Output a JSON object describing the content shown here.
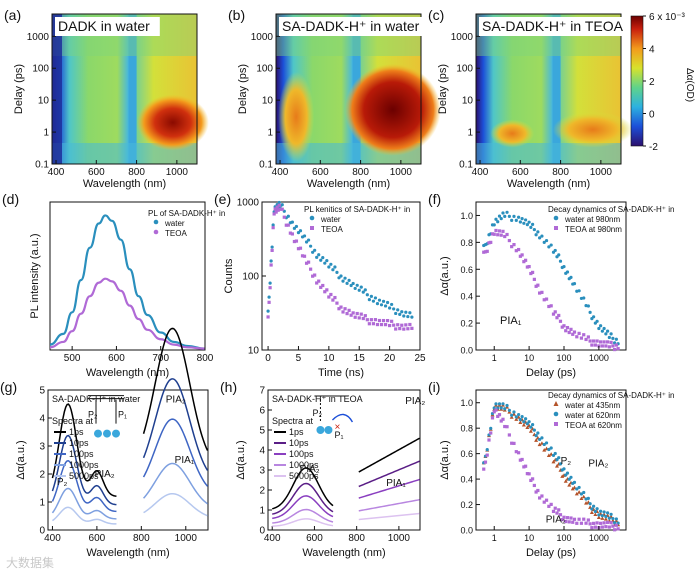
{
  "panels": {
    "a": {
      "letter": "(a)",
      "title": "DADK in water",
      "xlabel": "Wavelength (nm)",
      "ylabel": "Delay (ps)"
    },
    "b": {
      "letter": "(b)",
      "title": "SA-DADK-H⁺ in water",
      "xlabel": "Wavelength (nm)",
      "ylabel": "Delay (ps)"
    },
    "c": {
      "letter": "(c)",
      "title": "SA-DADK-H⁺ in TEOA",
      "xlabel": "Wavelength (nm)",
      "ylabel": "Delay (ps)"
    },
    "d": {
      "letter": "(d)",
      "legend_title": "PL of SA-DADK-H⁺ in",
      "xlabel": "Wavelength (nm)",
      "ylabel": "PL intensity (a.u.)"
    },
    "e": {
      "letter": "(e)",
      "legend_title": "PL kenitics of SA-DADK-H⁺ in",
      "xlabel": "Time (ns)",
      "ylabel": "Counts"
    },
    "f": {
      "letter": "(f)",
      "legend_title": "Decay dynamics of SA-DADK-H⁺ in",
      "xlabel": "Delay (ps)",
      "ylabel": "Δα(a.u.)",
      "annot": "PIA₁"
    },
    "g": {
      "letter": "(g)",
      "title": "SA-DADK-H⁺ in water",
      "legend_title": "Spectra at",
      "xlabel": "Wavelength (nm)",
      "ylabel": "Δα(a.u.)",
      "annots": [
        "PIA₂",
        "PIA₁",
        "P₂",
        "P₁",
        "P₂",
        "PIA₂"
      ]
    },
    "h": {
      "letter": "(h)",
      "title": "SA-DADK-H⁺ in TEOA",
      "legend_title": "Spectra at",
      "xlabel": "Wavelength (nm)",
      "ylabel": "Δα(a.u.)",
      "annots": [
        "PIA₂",
        "PIA₂",
        "PIA₁",
        "P₂",
        "P₁"
      ]
    },
    "i": {
      "letter": "(i)",
      "legend_title": "Decay dynamics of SA-DADK-H⁺ in",
      "xlabel": "Delay (ps)",
      "ylabel": "Δα(a.u.)",
      "annots": [
        "P₂",
        "PIA₂",
        "PIA₂"
      ]
    }
  },
  "colorbar": {
    "label": "Δα(OD)",
    "ticks": [
      "6 x 10⁻³",
      "4",
      "2",
      "0",
      "-2"
    ]
  },
  "watermark": "大数据集",
  "chart_data": [
    {
      "id": "a",
      "type": "heatmap",
      "title": "DADK in water",
      "xlabel": "Wavelength (nm)",
      "ylabel": "Delay (ps)",
      "xticks": [
        "400",
        "600",
        "800",
        "1000"
      ],
      "yticks": [
        "0.1",
        "1",
        "10",
        "100",
        "1000"
      ],
      "xlim": [
        380,
        1100
      ],
      "ylim": [
        0.1,
        5000
      ],
      "ylog": true,
      "features": [
        {
          "region": "380-420 nm",
          "value": -2
        },
        {
          "region": "850-1100 nm, 0.5-10 ps",
          "value": 4.5
        }
      ]
    },
    {
      "id": "b",
      "type": "heatmap",
      "title": "SA-DADK-H⁺ in water",
      "xlabel": "Wavelength (nm)",
      "ylabel": "Delay (ps)",
      "xticks": [
        "400",
        "600",
        "800",
        "1000"
      ],
      "yticks": [
        "0.1",
        "1",
        "10",
        "100",
        "1000"
      ],
      "xlim": [
        380,
        1100
      ],
      "ylim": [
        0.1,
        5000
      ],
      "ylog": true
    },
    {
      "id": "c",
      "type": "heatmap",
      "title": "SA-DADK-H⁺ in TEOA",
      "xlabel": "Wavelength (nm)",
      "ylabel": "Delay (ps)",
      "xticks": [
        "400",
        "600",
        "800",
        "1000"
      ],
      "yticks": [
        "0.1",
        "1",
        "10",
        "100",
        "1000"
      ],
      "xlim": [
        380,
        1100
      ],
      "ylim": [
        0.1,
        5000
      ],
      "ylog": true
    },
    {
      "id": "d",
      "type": "line",
      "xlabel": "Wavelength (nm)",
      "ylabel": "PL intensity (a.u.)",
      "xlim": [
        450,
        800
      ],
      "xticks": [
        "500",
        "600",
        "700",
        "800"
      ],
      "x": [
        450,
        480,
        500,
        520,
        540,
        560,
        575,
        590,
        610,
        630,
        650,
        670,
        700,
        730,
        760,
        800
      ],
      "series": [
        {
          "name": "water",
          "color": "#2a8fbd",
          "values": [
            0.04,
            0.12,
            0.28,
            0.52,
            0.76,
            0.94,
            1.0,
            0.96,
            0.82,
            0.6,
            0.4,
            0.26,
            0.13,
            0.06,
            0.03,
            0.01
          ]
        },
        {
          "name": "TEOA",
          "color": "#b06ad6",
          "values": [
            0.02,
            0.06,
            0.14,
            0.27,
            0.4,
            0.5,
            0.53,
            0.51,
            0.44,
            0.33,
            0.23,
            0.15,
            0.08,
            0.04,
            0.02,
            0.01
          ]
        }
      ]
    },
    {
      "id": "e",
      "type": "scatter",
      "xlabel": "Time (ns)",
      "ylabel": "Counts",
      "xlim": [
        -1,
        25
      ],
      "ylim": [
        10,
        1000
      ],
      "ylog": true,
      "xticks": [
        "0",
        "5",
        "10",
        "15",
        "20",
        "25"
      ],
      "yticks": [
        "10",
        "100",
        "1000"
      ],
      "series": [
        {
          "name": "water",
          "color": "#2a8fbd",
          "x": [
            0,
            1,
            2,
            4,
            6,
            8,
            10,
            12,
            14,
            16,
            18,
            20,
            22,
            24
          ],
          "values": [
            30,
            800,
            900,
            520,
            320,
            200,
            140,
            100,
            75,
            58,
            46,
            38,
            32,
            28
          ]
        },
        {
          "name": "TEOA",
          "color": "#b06ad6",
          "x": [
            0,
            1,
            2,
            4,
            6,
            8,
            10,
            12,
            14,
            16,
            18,
            20,
            22,
            24
          ],
          "values": [
            25,
            750,
            820,
            360,
            170,
            90,
            55,
            38,
            30,
            26,
            24,
            22,
            21,
            20
          ]
        }
      ]
    },
    {
      "id": "f",
      "type": "scatter",
      "xlabel": "Delay (ps)",
      "ylabel": "Δα(a.u.)",
      "xlog": true,
      "xlim": [
        0.3,
        6000
      ],
      "ylim": [
        0,
        1.1
      ],
      "xticks": [
        "1",
        "10",
        "100",
        "1000"
      ],
      "yticks": [
        "0.0",
        "0.2",
        "0.4",
        "0.6",
        "0.8",
        "1.0"
      ],
      "series": [
        {
          "name": "water at 980nm",
          "color": "#2a8fbd",
          "x": [
            0.5,
            1,
            2,
            5,
            10,
            20,
            50,
            100,
            200,
            500,
            1000,
            2000,
            4000
          ],
          "values": [
            0.75,
            0.95,
            1.0,
            0.98,
            0.93,
            0.86,
            0.74,
            0.62,
            0.48,
            0.3,
            0.18,
            0.1,
            0.06
          ]
        },
        {
          "name": "TEOA at 980nm",
          "color": "#b06ad6",
          "x": [
            0.5,
            1,
            2,
            5,
            10,
            20,
            50,
            100,
            200,
            500,
            1000,
            2000,
            4000
          ],
          "values": [
            0.7,
            0.88,
            0.85,
            0.74,
            0.6,
            0.45,
            0.28,
            0.18,
            0.12,
            0.07,
            0.05,
            0.03,
            0.03
          ]
        }
      ]
    },
    {
      "id": "g",
      "type": "line",
      "xlabel": "Wavelength (nm)",
      "ylabel": "Δα(a.u.)",
      "xlim": [
        380,
        1100
      ],
      "ylim": [
        0,
        5
      ],
      "xticks": [
        "400",
        "600",
        "800",
        "1000"
      ],
      "yticks": [
        "0",
        "1",
        "2",
        "3",
        "4",
        "5"
      ],
      "series": [
        {
          "name": "1ps",
          "color": "#000000"
        },
        {
          "name": "10ps",
          "color": "#1f3f8f"
        },
        {
          "name": "100ps",
          "color": "#3f66c4"
        },
        {
          "name": "1000ps",
          "color": "#7ea0e0"
        },
        {
          "name": "5000ps",
          "color": "#b6c8ef"
        }
      ]
    },
    {
      "id": "h",
      "type": "line",
      "xlabel": "Wavelength (nm)",
      "ylabel": "Δα(a.u.)",
      "xlim": [
        380,
        1100
      ],
      "ylim": [
        0,
        7
      ],
      "xticks": [
        "400",
        "600",
        "800",
        "1000"
      ],
      "yticks": [
        "0",
        "1",
        "2",
        "3",
        "4",
        "5",
        "6",
        "7"
      ],
      "series": [
        {
          "name": "1ps",
          "color": "#000000"
        },
        {
          "name": "10ps",
          "color": "#5a1e86"
        },
        {
          "name": "100ps",
          "color": "#8a3fc0"
        },
        {
          "name": "1000ps",
          "color": "#b886e0"
        },
        {
          "name": "5000ps",
          "color": "#dcc2f0"
        }
      ]
    },
    {
      "id": "i",
      "type": "scatter",
      "xlabel": "Delay (ps)",
      "ylabel": "Δα(a.u.)",
      "xlog": true,
      "xlim": [
        0.3,
        6000
      ],
      "ylim": [
        0,
        1.1
      ],
      "xticks": [
        "1",
        "10",
        "100",
        "1000"
      ],
      "yticks": [
        "0.0",
        "0.2",
        "0.4",
        "0.6",
        "0.8",
        "1.0"
      ],
      "series": [
        {
          "name": "water at 435nm",
          "color": "#b4532a",
          "x": [
            0.5,
            1,
            2,
            5,
            10,
            20,
            50,
            100,
            200,
            500,
            1000,
            2000,
            4000
          ],
          "values": [
            0.5,
            0.97,
            0.95,
            0.88,
            0.8,
            0.7,
            0.55,
            0.43,
            0.32,
            0.19,
            0.12,
            0.08,
            0.06
          ]
        },
        {
          "name": "water at 620nm",
          "color": "#2a8fbd",
          "x": [
            0.5,
            1,
            2,
            5,
            10,
            20,
            50,
            100,
            200,
            500,
            1000,
            2000,
            4000
          ],
          "values": [
            0.5,
            0.98,
            0.96,
            0.9,
            0.83,
            0.74,
            0.6,
            0.48,
            0.36,
            0.22,
            0.14,
            0.1,
            0.07
          ]
        },
        {
          "name": "TEOA at 620nm",
          "color": "#b06ad6",
          "x": [
            0.5,
            1,
            2,
            5,
            10,
            20,
            50,
            100,
            200,
            500,
            1000,
            2000,
            4000
          ],
          "values": [
            0.45,
            0.95,
            0.82,
            0.6,
            0.42,
            0.28,
            0.16,
            0.1,
            0.07,
            0.05,
            0.04,
            0.03,
            0.03
          ]
        }
      ]
    }
  ]
}
